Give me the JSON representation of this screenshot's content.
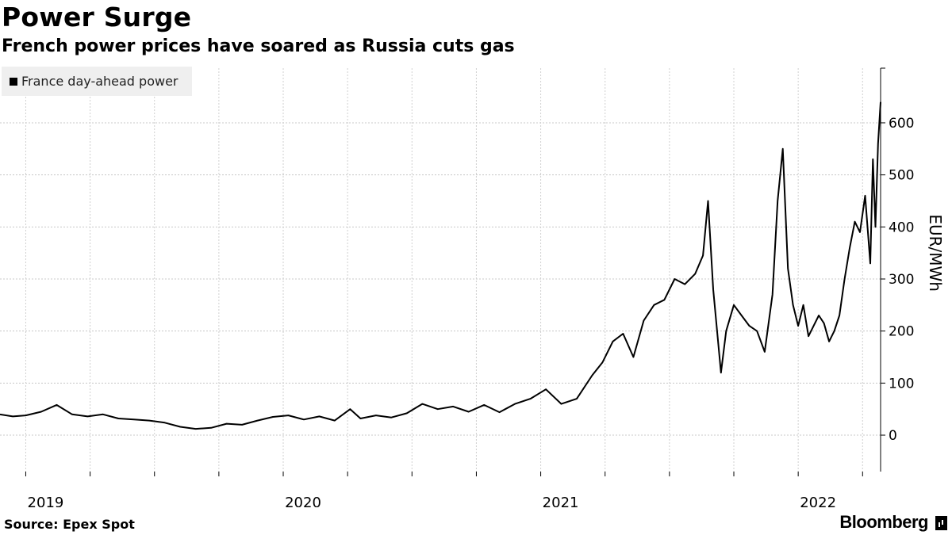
{
  "title": "Power Surge",
  "subtitle": "French power prices have soared as Russia cuts gas",
  "source": "Source: Epex Spot",
  "brand": "Bloomberg",
  "legend": {
    "label": "France day-ahead power",
    "color": "#000000"
  },
  "chart_data": {
    "type": "line",
    "title": "Power Surge",
    "subtitle": "French power prices have soared as Russia cuts gas",
    "xlabel": "",
    "ylabel": "EUR/MWh",
    "ylim": [
      -70,
      705
    ],
    "yticks": [
      0,
      100,
      200,
      300,
      400,
      500,
      600
    ],
    "xlim": [
      2018.9,
      2022.32
    ],
    "xticks": [
      2019,
      2020,
      2021,
      2022
    ],
    "grid": true,
    "legend_position": "top-left",
    "series": [
      {
        "name": "France day-ahead power",
        "color": "#000000",
        "points": [
          [
            2018.9,
            40
          ],
          [
            2018.95,
            36
          ],
          [
            2019.0,
            38
          ],
          [
            2019.06,
            45
          ],
          [
            2019.12,
            58
          ],
          [
            2019.18,
            40
          ],
          [
            2019.24,
            36
          ],
          [
            2019.3,
            40
          ],
          [
            2019.36,
            32
          ],
          [
            2019.42,
            30
          ],
          [
            2019.48,
            28
          ],
          [
            2019.54,
            24
          ],
          [
            2019.6,
            16
          ],
          [
            2019.66,
            12
          ],
          [
            2019.72,
            14
          ],
          [
            2019.78,
            22
          ],
          [
            2019.84,
            20
          ],
          [
            2019.9,
            28
          ],
          [
            2019.96,
            35
          ],
          [
            2020.02,
            38
          ],
          [
            2020.08,
            30
          ],
          [
            2020.14,
            36
          ],
          [
            2020.2,
            28
          ],
          [
            2020.26,
            50
          ],
          [
            2020.3,
            32
          ],
          [
            2020.36,
            38
          ],
          [
            2020.42,
            34
          ],
          [
            2020.48,
            42
          ],
          [
            2020.54,
            60
          ],
          [
            2020.6,
            50
          ],
          [
            2020.66,
            55
          ],
          [
            2020.72,
            45
          ],
          [
            2020.78,
            58
          ],
          [
            2020.84,
            44
          ],
          [
            2020.9,
            60
          ],
          [
            2020.96,
            70
          ],
          [
            2021.02,
            88
          ],
          [
            2021.08,
            60
          ],
          [
            2021.14,
            70
          ],
          [
            2021.2,
            115
          ],
          [
            2021.24,
            140
          ],
          [
            2021.28,
            180
          ],
          [
            2021.32,
            195
          ],
          [
            2021.36,
            150
          ],
          [
            2021.4,
            220
          ],
          [
            2021.44,
            250
          ],
          [
            2021.48,
            260
          ],
          [
            2021.52,
            300
          ],
          [
            2021.56,
            290
          ],
          [
            2021.6,
            310
          ],
          [
            2021.63,
            345
          ],
          [
            2021.65,
            450
          ],
          [
            2021.67,
            280
          ],
          [
            2021.7,
            120
          ],
          [
            2021.72,
            200
          ],
          [
            2021.75,
            250
          ],
          [
            2021.78,
            230
          ],
          [
            2021.81,
            210
          ],
          [
            2021.84,
            200
          ],
          [
            2021.87,
            160
          ],
          [
            2021.9,
            270
          ],
          [
            2021.92,
            450
          ],
          [
            2021.94,
            550
          ],
          [
            2021.96,
            320
          ],
          [
            2021.98,
            250
          ],
          [
            2022.0,
            210
          ],
          [
            2022.02,
            250
          ],
          [
            2022.04,
            190
          ],
          [
            2022.06,
            210
          ],
          [
            2022.08,
            230
          ],
          [
            2022.1,
            215
          ],
          [
            2022.12,
            180
          ],
          [
            2022.14,
            200
          ],
          [
            2022.16,
            230
          ],
          [
            2022.18,
            300
          ],
          [
            2022.2,
            360
          ],
          [
            2022.22,
            410
          ],
          [
            2022.24,
            390
          ],
          [
            2022.26,
            460
          ],
          [
            2022.28,
            330
          ],
          [
            2022.29,
            530
          ],
          [
            2022.3,
            400
          ],
          [
            2022.31,
            560
          ],
          [
            2022.32,
            640
          ]
        ]
      }
    ]
  }
}
